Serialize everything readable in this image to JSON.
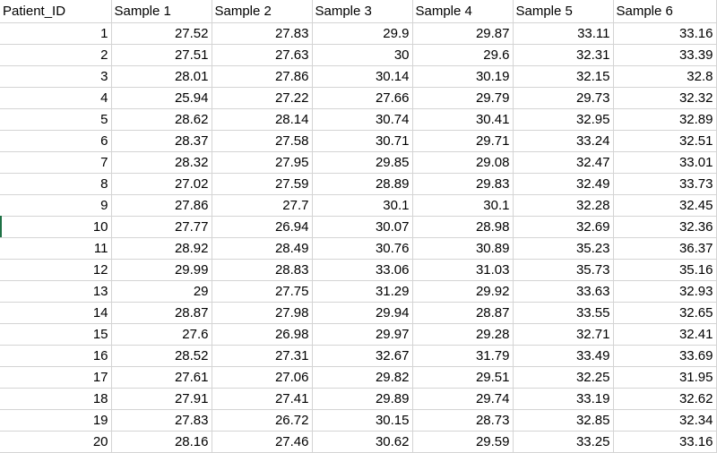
{
  "columns": [
    "Patient_ID",
    "Sample 1",
    "Sample 2",
    "Sample 3",
    "Sample 4",
    "Sample 5",
    "Sample 6"
  ],
  "rows": [
    [
      "1",
      "27.52",
      "27.83",
      "29.9",
      "29.87",
      "33.11",
      "33.16"
    ],
    [
      "2",
      "27.51",
      "27.63",
      "30",
      "29.6",
      "32.31",
      "33.39"
    ],
    [
      "3",
      "28.01",
      "27.86",
      "30.14",
      "30.19",
      "32.15",
      "32.8"
    ],
    [
      "4",
      "25.94",
      "27.22",
      "27.66",
      "29.79",
      "29.73",
      "32.32"
    ],
    [
      "5",
      "28.62",
      "28.14",
      "30.74",
      "30.41",
      "32.95",
      "32.89"
    ],
    [
      "6",
      "28.37",
      "27.58",
      "30.71",
      "29.71",
      "33.24",
      "32.51"
    ],
    [
      "7",
      "28.32",
      "27.95",
      "29.85",
      "29.08",
      "32.47",
      "33.01"
    ],
    [
      "8",
      "27.02",
      "27.59",
      "28.89",
      "29.83",
      "32.49",
      "33.73"
    ],
    [
      "9",
      "27.86",
      "27.7",
      "30.1",
      "30.1",
      "32.28",
      "32.45"
    ],
    [
      "10",
      "27.77",
      "26.94",
      "30.07",
      "28.98",
      "32.69",
      "32.36"
    ],
    [
      "11",
      "28.92",
      "28.49",
      "30.76",
      "30.89",
      "35.23",
      "36.37"
    ],
    [
      "12",
      "29.99",
      "28.83",
      "33.06",
      "31.03",
      "35.73",
      "35.16"
    ],
    [
      "13",
      "29",
      "27.75",
      "31.29",
      "29.92",
      "33.63",
      "32.93"
    ],
    [
      "14",
      "28.87",
      "27.98",
      "29.94",
      "28.87",
      "33.55",
      "32.65"
    ],
    [
      "15",
      "27.6",
      "26.98",
      "29.97",
      "29.28",
      "32.71",
      "32.41"
    ],
    [
      "16",
      "28.52",
      "27.31",
      "32.67",
      "31.79",
      "33.49",
      "33.69"
    ],
    [
      "17",
      "27.61",
      "27.06",
      "29.82",
      "29.51",
      "32.25",
      "31.95"
    ],
    [
      "18",
      "27.91",
      "27.41",
      "29.89",
      "29.74",
      "33.19",
      "32.62"
    ],
    [
      "19",
      "27.83",
      "26.72",
      "30.15",
      "28.73",
      "32.85",
      "32.34"
    ],
    [
      "20",
      "28.16",
      "27.46",
      "30.62",
      "29.59",
      "33.25",
      "33.16"
    ]
  ]
}
